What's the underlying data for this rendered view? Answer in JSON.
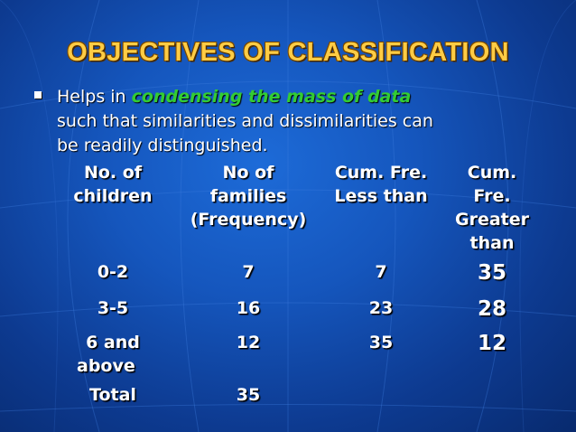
{
  "slide": {
    "title": "OBJECTIVES OF CLASSIFICATION",
    "bullet": {
      "prefix": "Helps in ",
      "emphasis": "condensing the mass of data",
      "line1_rest": "",
      "line2": "such that similarities and dissimilarities can",
      "line3": "be readily distinguished."
    },
    "colors": {
      "background": "#1556bd",
      "title": "#ffcc44",
      "emphasis": "#33cc33",
      "text": "#ffffff"
    }
  },
  "table": {
    "headers": [
      [
        "No. of",
        "children"
      ],
      [
        "No of",
        "families",
        "(Frequency)"
      ],
      [
        "Cum. Fre.",
        "Less than"
      ],
      [
        "Cum.",
        "Fre.",
        "Greater",
        "than"
      ]
    ],
    "rows": [
      {
        "children": [
          "0-2"
        ],
        "freq": "7",
        "less": "7",
        "greater": "35"
      },
      {
        "children": [
          "3-5"
        ],
        "freq": "16",
        "less": "23",
        "greater": "28"
      },
      {
        "children": [
          "6 and",
          "above"
        ],
        "freq": "12",
        "less": "35",
        "greater": "12"
      },
      {
        "children": [
          "Total"
        ],
        "freq": "35",
        "less": "",
        "greater": ""
      }
    ]
  }
}
